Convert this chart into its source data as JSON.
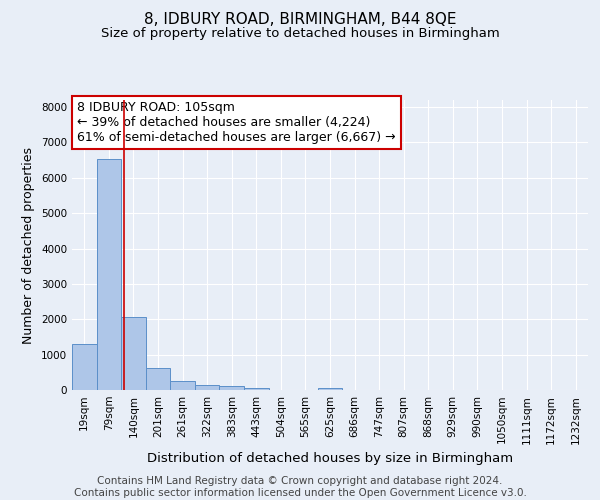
{
  "title": "8, IDBURY ROAD, BIRMINGHAM, B44 8QE",
  "subtitle": "Size of property relative to detached houses in Birmingham",
  "xlabel": "Distribution of detached houses by size in Birmingham",
  "ylabel": "Number of detached properties",
  "footer_line1": "Contains HM Land Registry data © Crown copyright and database right 2024.",
  "footer_line2": "Contains public sector information licensed under the Open Government Licence v3.0.",
  "categories": [
    "19sqm",
    "79sqm",
    "140sqm",
    "201sqm",
    "261sqm",
    "322sqm",
    "383sqm",
    "443sqm",
    "504sqm",
    "565sqm",
    "625sqm",
    "686sqm",
    "747sqm",
    "807sqm",
    "868sqm",
    "929sqm",
    "990sqm",
    "1050sqm",
    "1111sqm",
    "1172sqm",
    "1232sqm"
  ],
  "values": [
    1300,
    6530,
    2060,
    620,
    260,
    130,
    100,
    60,
    0,
    0,
    60,
    0,
    0,
    0,
    0,
    0,
    0,
    0,
    0,
    0,
    0
  ],
  "bar_color": "#aec6e8",
  "bar_edge_color": "#5b8fc9",
  "property_line_x": 1.6,
  "property_line_color": "#cc0000",
  "annotation_line1": "8 IDBURY ROAD: 105sqm",
  "annotation_line2": "← 39% of detached houses are smaller (4,224)",
  "annotation_line3": "61% of semi-detached houses are larger (6,667) →",
  "annotation_box_color": "#ffffff",
  "annotation_box_edge_color": "#cc0000",
  "ylim": [
    0,
    8200
  ],
  "yticks": [
    0,
    1000,
    2000,
    3000,
    4000,
    5000,
    6000,
    7000,
    8000
  ],
  "background_color": "#e8eef7",
  "grid_color": "#ffffff",
  "title_fontsize": 11,
  "subtitle_fontsize": 9.5,
  "xlabel_fontsize": 9.5,
  "ylabel_fontsize": 9,
  "tick_fontsize": 7.5,
  "annotation_fontsize": 9,
  "footer_fontsize": 7.5
}
